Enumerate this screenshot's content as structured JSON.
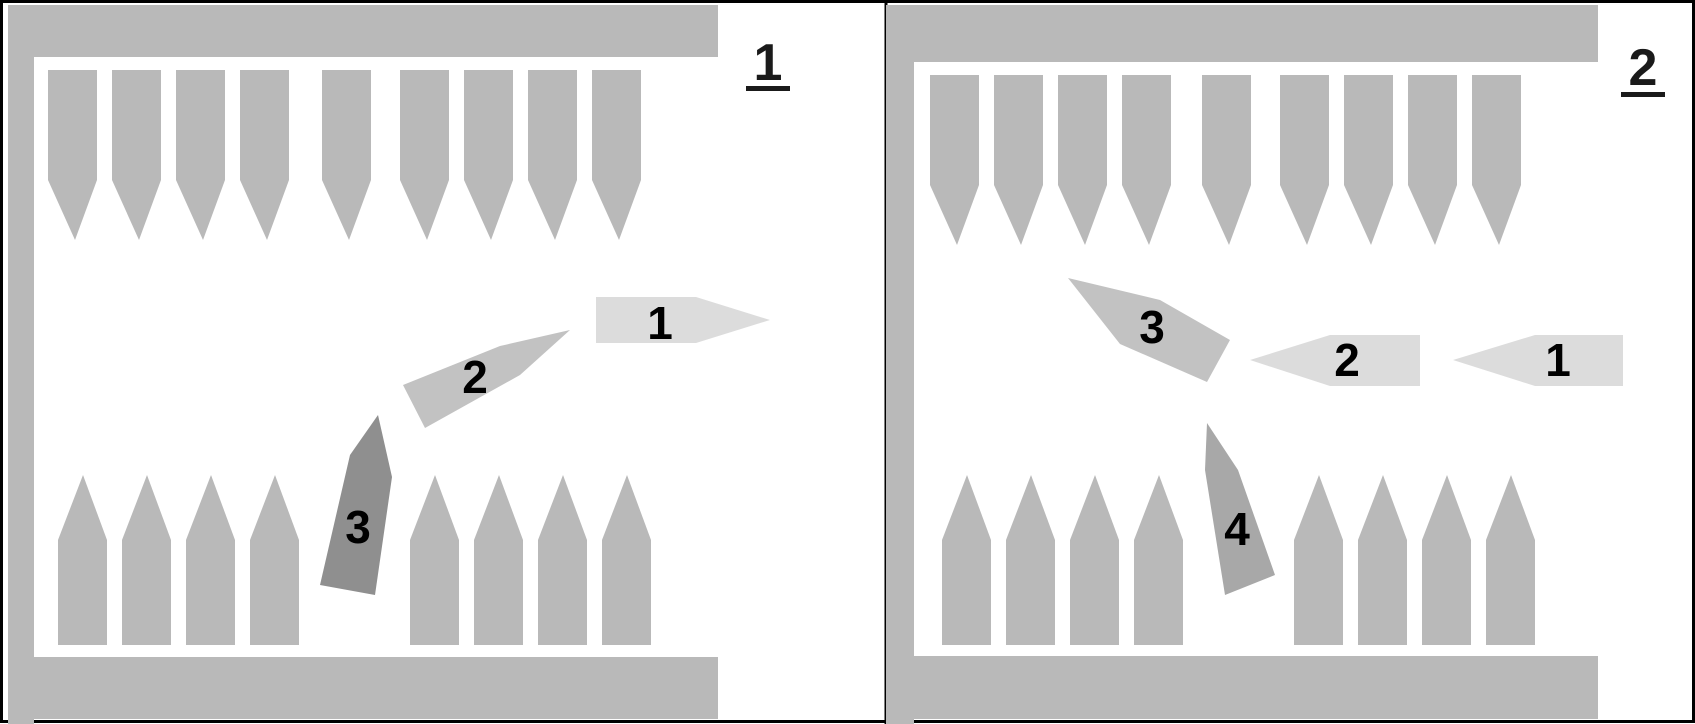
{
  "colors": {
    "background": "#ffffff",
    "border": "#000000",
    "wall": "#b9b9b9",
    "boat_berthed": "#b9b9b9",
    "boat_light": "#dcdcdc",
    "boat_mid": "#c2c2c2",
    "boat_dark": "#8f8f8f",
    "boat_mid_dark": "#a8a8a8",
    "text": "#000000"
  },
  "panels": [
    {
      "label": "1",
      "moving_boats": [
        {
          "label": "1",
          "color_key": "boat_light"
        },
        {
          "label": "2",
          "color_key": "boat_mid"
        },
        {
          "label": "3",
          "color_key": "boat_dark"
        }
      ]
    },
    {
      "label": "2",
      "moving_boats": [
        {
          "label": "1",
          "color_key": "boat_light"
        },
        {
          "label": "2",
          "color_key": "boat_light"
        },
        {
          "label": "3",
          "color_key": "boat_mid"
        },
        {
          "label": "4",
          "color_key": "boat_mid_dark"
        }
      ]
    }
  ]
}
